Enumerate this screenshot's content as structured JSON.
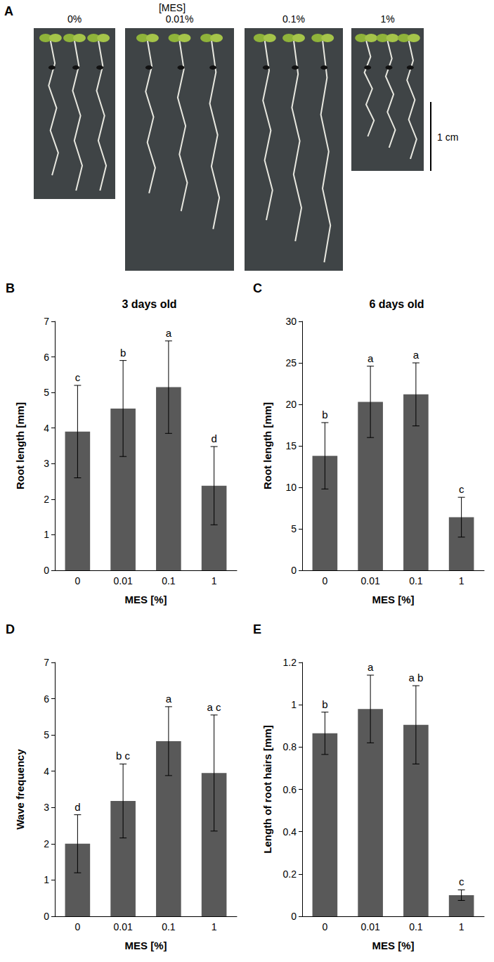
{
  "panel_a": {
    "panel": "A",
    "heading": "[MES]",
    "photo_labels": [
      "0%",
      "0.01%",
      "0.1%",
      "1%"
    ],
    "scale_bar": "1 cm"
  },
  "chart_data": [
    {
      "panel": "B",
      "type": "bar",
      "title": "3 days old",
      "x_label": "MES [%]",
      "y_label": "Root length [mm]",
      "categories": [
        "0",
        "0.01",
        "0.1",
        "1"
      ],
      "values": [
        3.9,
        4.55,
        5.15,
        2.38
      ],
      "errors": [
        1.3,
        1.35,
        1.3,
        1.1
      ],
      "letters": [
        "c",
        "b",
        "a",
        "d"
      ],
      "color": "#595959",
      "ylim": [
        0,
        7
      ],
      "yticks": [
        0,
        1,
        2,
        3,
        4,
        5,
        6,
        7
      ],
      "grid": false
    },
    {
      "panel": "C",
      "type": "bar",
      "title": "6 days old",
      "x_label": "MES [%]",
      "y_label": "Root length [mm]",
      "categories": [
        "0",
        "0.01",
        "0.1",
        "1"
      ],
      "values": [
        13.8,
        20.3,
        21.2,
        6.4
      ],
      "errors": [
        4.0,
        4.3,
        3.8,
        2.4
      ],
      "letters": [
        "b",
        "a",
        "a",
        "c"
      ],
      "color": "#595959",
      "ylim": [
        0,
        30
      ],
      "yticks": [
        0,
        5,
        10,
        15,
        20,
        25,
        30
      ],
      "grid": false
    },
    {
      "panel": "D",
      "type": "bar",
      "x_label": "MES [%]",
      "y_label": "Wave frequency",
      "categories": [
        "0",
        "0.01",
        "0.1",
        "1"
      ],
      "values": [
        2.0,
        3.18,
        4.83,
        3.95
      ],
      "errors": [
        0.8,
        1.02,
        0.95,
        1.6
      ],
      "letters": [
        "d",
        "b c",
        "a",
        "a c"
      ],
      "color": "#595959",
      "ylim": [
        0,
        7
      ],
      "yticks": [
        0,
        1,
        2,
        3,
        4,
        5,
        6,
        7
      ],
      "grid": false
    },
    {
      "panel": "E",
      "type": "bar",
      "x_label": "MES [%]",
      "y_label": "Length of root hairs [mm]",
      "categories": [
        "0",
        "0.01",
        "0.1",
        "1"
      ],
      "values": [
        0.865,
        0.98,
        0.905,
        0.1
      ],
      "errors": [
        0.1,
        0.16,
        0.185,
        0.025
      ],
      "letters": [
        "b",
        "a",
        "a b",
        "c"
      ],
      "color": "#595959",
      "ylim": [
        0,
        1.2
      ],
      "yticks": [
        0,
        0.2,
        0.4,
        0.6,
        0.8,
        1,
        1.2
      ],
      "grid": false
    }
  ]
}
